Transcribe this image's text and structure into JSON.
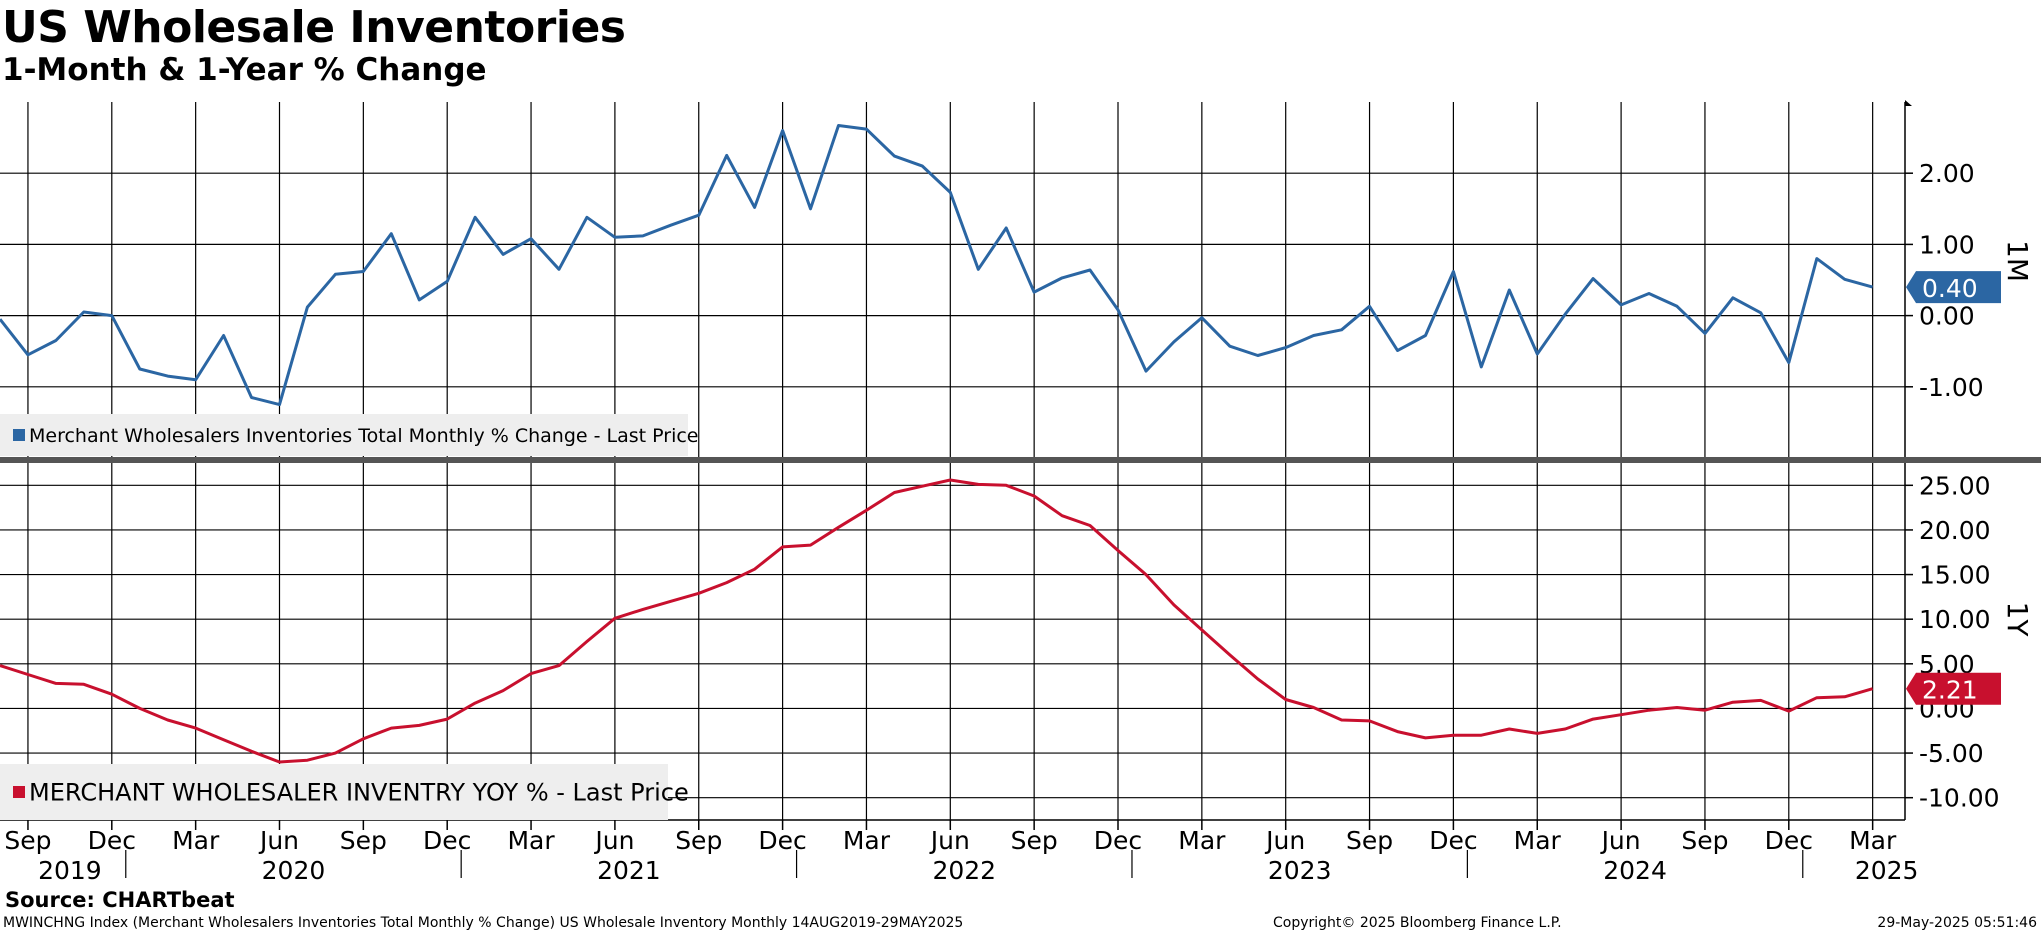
{
  "header": {
    "title": "US Wholesale Inventories",
    "subtitle": "1-Month & 1-Year % Change"
  },
  "footer": {
    "source": "Source: CHARTbeat",
    "ticker_info": "MWINCHNG Index (Merchant Wholesalers Inventories Total Monthly % Change) US Wholesale Inventory  Monthly 14AUG2019-29MAY2025",
    "copyright": "Copyright© 2025 Bloomberg Finance L.P.",
    "timestamp": "29-May-2025 05:51:46"
  },
  "colors": {
    "series_1m": "#2b66a3",
    "series_1y": "#c8102e",
    "grid": "#000000",
    "legend_bg": "#eeeeee",
    "separator": "#555555"
  },
  "chart_data": [
    {
      "type": "line",
      "panel_label": "1M",
      "legend": "Merchant Wholesalers Inventories Total Monthly % Change - Last Price",
      "last_value_label": "0.40",
      "ylim": [
        -2.0,
        3.0
      ],
      "yticks": [
        -1.0,
        0.0,
        1.0,
        2.0
      ],
      "ytick_labels": [
        "-1.00",
        "0.00",
        "1.00",
        "2.00"
      ],
      "x": [
        "2019-08",
        "2019-09",
        "2019-10",
        "2019-11",
        "2019-12",
        "2020-01",
        "2020-02",
        "2020-03",
        "2020-04",
        "2020-05",
        "2020-06",
        "2020-07",
        "2020-08",
        "2020-09",
        "2020-10",
        "2020-11",
        "2020-12",
        "2021-01",
        "2021-02",
        "2021-03",
        "2021-04",
        "2021-05",
        "2021-06",
        "2021-07",
        "2021-08",
        "2021-09",
        "2021-10",
        "2021-11",
        "2021-12",
        "2022-01",
        "2022-02",
        "2022-03",
        "2022-04",
        "2022-05",
        "2022-06",
        "2022-07",
        "2022-08",
        "2022-09",
        "2022-10",
        "2022-11",
        "2022-12",
        "2023-01",
        "2023-02",
        "2023-03",
        "2023-04",
        "2023-05",
        "2023-06",
        "2023-07",
        "2023-08",
        "2023-09",
        "2023-10",
        "2023-11",
        "2023-12",
        "2024-01",
        "2024-02",
        "2024-03",
        "2024-04",
        "2024-05",
        "2024-06",
        "2024-07",
        "2024-08",
        "2024-09",
        "2024-10",
        "2024-11",
        "2024-12",
        "2025-01",
        "2025-02",
        "2025-03"
      ],
      "values": [
        -0.05,
        -0.55,
        -0.35,
        0.05,
        0.0,
        -0.75,
        -0.85,
        -0.9,
        -0.28,
        -1.15,
        -1.25,
        0.12,
        0.58,
        0.62,
        1.15,
        0.22,
        0.48,
        1.38,
        0.86,
        1.08,
        0.65,
        1.38,
        1.1,
        1.12,
        1.27,
        1.41,
        2.25,
        1.52,
        2.6,
        1.5,
        2.67,
        2.62,
        2.24,
        2.1,
        1.73,
        0.65,
        1.23,
        0.33,
        0.53,
        0.64,
        0.08,
        -0.78,
        -0.37,
        -0.03,
        -0.43,
        -0.56,
        -0.45,
        -0.28,
        -0.2,
        0.13,
        -0.49,
        -0.28,
        0.62,
        -0.72,
        0.36,
        -0.54,
        0.02,
        0.52,
        0.15,
        0.31,
        0.13,
        -0.25,
        0.25,
        0.04,
        -0.66,
        0.8,
        0.51,
        0.4
      ]
    },
    {
      "type": "line",
      "panel_label": "1Y",
      "legend": "MERCHANT WHOLESALER INVENTRY YOY % - Last Price",
      "last_value_label": "2.21",
      "ylim": [
        -12.5,
        27.5
      ],
      "yticks": [
        -10,
        -5,
        0,
        5,
        10,
        15,
        20,
        25
      ],
      "ytick_labels": [
        "-10.00",
        "-5.00",
        "0.00",
        "5.00",
        "10.00",
        "15.00",
        "20.00",
        "25.00"
      ],
      "values": [
        4.8,
        3.8,
        2.8,
        2.7,
        1.6,
        0.0,
        -1.3,
        -2.2,
        -3.5,
        -4.8,
        -6.0,
        -5.8,
        -5.0,
        -3.4,
        -2.2,
        -1.9,
        -1.2,
        0.6,
        2.0,
        3.9,
        4.8,
        7.5,
        10.1,
        11.1,
        12.0,
        12.9,
        14.1,
        15.6,
        18.1,
        18.3,
        20.3,
        22.2,
        24.2,
        24.9,
        25.6,
        25.1,
        25.0,
        23.8,
        21.6,
        20.5,
        17.7,
        15.0,
        11.6,
        8.8,
        6.0,
        3.3,
        1.0,
        0.1,
        -1.3,
        -1.4,
        -2.6,
        -3.3,
        -3.0,
        -3.0,
        -2.3,
        -2.8,
        -2.3,
        -1.2,
        -0.7,
        -0.2,
        0.1,
        -0.2,
        0.7,
        0.9,
        -0.3,
        1.2,
        1.3,
        2.21
      ]
    }
  ],
  "x_axis": {
    "month_labels": [
      "Sep",
      "Dec",
      "Mar",
      "Jun",
      "Sep",
      "Dec",
      "Mar",
      "Jun",
      "Sep",
      "Dec",
      "Mar",
      "Jun",
      "Sep",
      "Dec",
      "Mar",
      "Jun",
      "Sep",
      "Dec",
      "Mar",
      "Jun",
      "Sep",
      "Dec",
      "Mar"
    ],
    "month_label_indices": [
      1,
      4,
      7,
      10,
      13,
      16,
      19,
      22,
      25,
      28,
      31,
      34,
      37,
      40,
      43,
      46,
      49,
      52,
      55,
      58,
      61,
      64,
      67
    ],
    "year_labels": [
      "2019",
      "2020",
      "2021",
      "2022",
      "2023",
      "2024",
      "2025"
    ],
    "year_label_indices": [
      2.5,
      10.5,
      22.5,
      34.5,
      46.5,
      58.5,
      67.5
    ]
  }
}
